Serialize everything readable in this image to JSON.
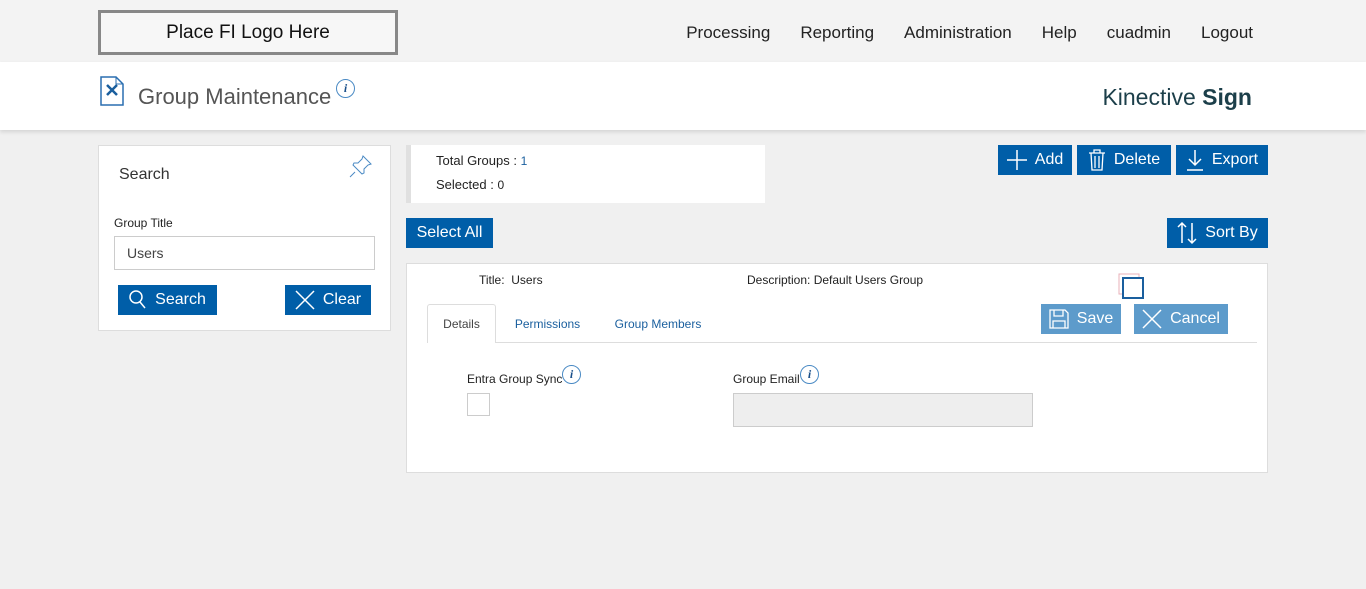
{
  "top": {
    "logo": "Place FI Logo Here",
    "nav": [
      "Processing",
      "Reporting",
      "Administration",
      "Help",
      "cuadmin",
      "Logout"
    ]
  },
  "header": {
    "title": "Group Maintenance",
    "brand_light": "Kinective",
    "brand_bold": "Sign",
    "info_icon": "i"
  },
  "search": {
    "title": "Search",
    "field_label": "Group Title",
    "field_value": "Users",
    "search_label": "Search",
    "clear_label": "Clear"
  },
  "summary": {
    "total_label": "Total Groups :",
    "total_value": "1",
    "selected_label": "Selected :",
    "selected_value": "0"
  },
  "toolbar": {
    "add": "Add",
    "delete": "Delete",
    "export": "Export",
    "select_all": "Select All",
    "sort_by": "Sort By"
  },
  "detail": {
    "title_label": "Title:",
    "title_value": "Users",
    "desc_label": "Description:",
    "desc_value": "Default Users Group",
    "tabs": [
      "Details",
      "Permissions",
      "Group Members"
    ],
    "save": "Save",
    "cancel": "Cancel",
    "sync_label": "Entra Group Sync",
    "email_label": "Group Email",
    "email_value": ""
  },
  "colors": {
    "primary": "#005ea8",
    "disabled": "#5d9bcb"
  }
}
